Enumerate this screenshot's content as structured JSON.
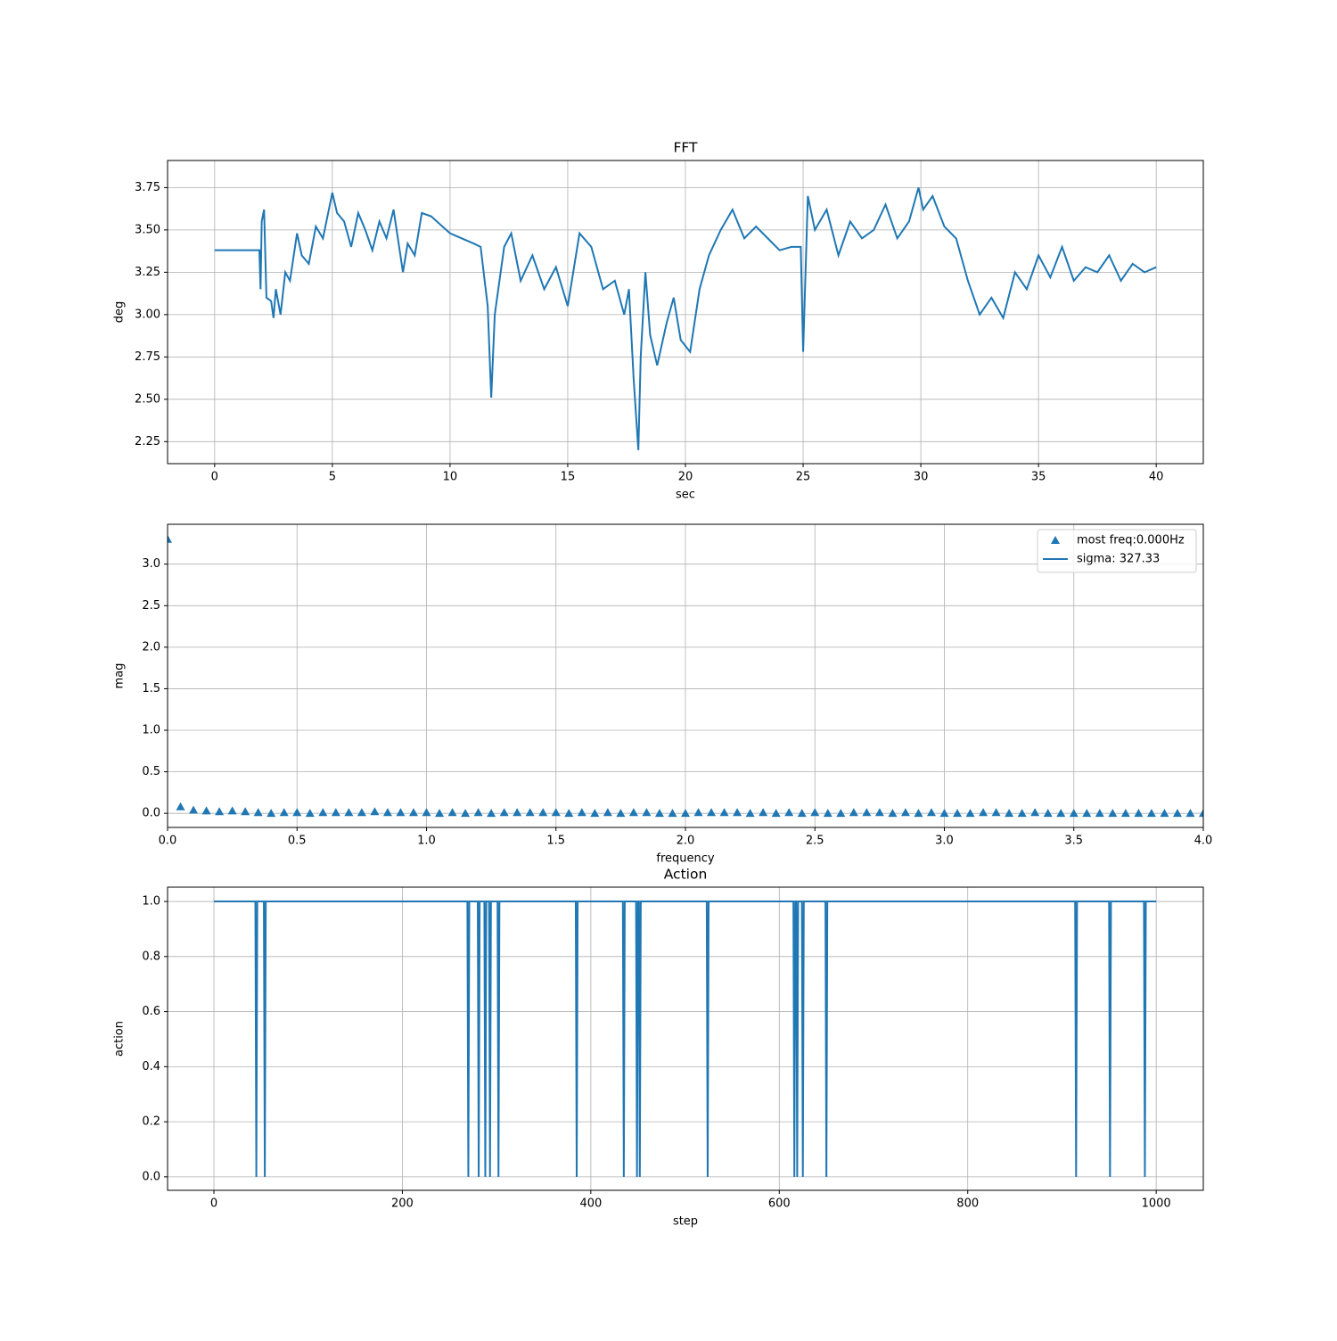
{
  "chart_data": [
    {
      "type": "line",
      "title": "FFT",
      "x_label": "sec",
      "y_label": "deg",
      "grid": true,
      "xlim": [
        -2.0,
        42.0
      ],
      "ylim": [
        2.12,
        3.91
      ],
      "xticks": [
        0,
        5,
        10,
        15,
        20,
        25,
        30,
        35,
        40
      ],
      "yticks": [
        2.25,
        {
          "value": 2.5,
          "label": "2.50"
        },
        2.75,
        {
          "value": 3.0,
          "label": "3.00"
        },
        3.25,
        {
          "value": 3.5,
          "label": "3.50"
        },
        3.75
      ],
      "x": [
        0,
        1.9,
        1.95,
        2.0,
        2.1,
        2.2,
        2.4,
        2.5,
        2.6,
        2.8,
        3.0,
        3.2,
        3.5,
        3.7,
        4.0,
        4.3,
        4.6,
        5.0,
        5.2,
        5.5,
        5.8,
        6.1,
        6.4,
        6.7,
        7.0,
        7.3,
        7.6,
        8.0,
        8.2,
        8.5,
        8.8,
        9.2,
        10,
        11,
        11.3,
        11.6,
        11.75,
        11.9,
        12.3,
        12.6,
        13.0,
        13.5,
        14.0,
        14.5,
        15.0,
        15.5,
        16.0,
        16.5,
        17.0,
        17.4,
        17.6,
        17.8,
        18.0,
        18.1,
        18.3,
        18.5,
        18.8,
        19.2,
        19.5,
        19.8,
        20.2,
        20.6,
        21.0,
        21.5,
        22.0,
        22.5,
        23.0,
        23.5,
        24.0,
        24.5,
        24.9,
        25.0,
        25.2,
        25.5,
        26,
        26.5,
        27,
        27.5,
        28,
        28.5,
        29,
        29.5,
        29.9,
        30.1,
        30.5,
        31,
        31.5,
        32,
        32.5,
        33,
        33.5,
        34,
        34.5,
        35,
        35.5,
        36,
        36.5,
        37,
        37.5,
        38,
        38.5,
        39,
        39.5,
        40
      ],
      "series": [
        {
          "color": "#1f77b4",
          "values": [
            3.38,
            3.38,
            3.15,
            3.55,
            3.62,
            3.1,
            3.08,
            2.98,
            3.15,
            3.0,
            3.25,
            3.2,
            3.48,
            3.35,
            3.3,
            3.52,
            3.45,
            3.72,
            3.6,
            3.55,
            3.4,
            3.6,
            3.5,
            3.38,
            3.55,
            3.45,
            3.62,
            3.25,
            3.42,
            3.35,
            3.6,
            3.58,
            3.48,
            3.42,
            3.4,
            3.05,
            2.51,
            3.0,
            3.4,
            3.48,
            3.2,
            3.35,
            3.15,
            3.28,
            3.05,
            3.48,
            3.4,
            3.15,
            3.2,
            3.0,
            3.15,
            2.62,
            2.2,
            2.75,
            3.25,
            2.88,
            2.7,
            2.95,
            3.1,
            2.85,
            2.78,
            3.15,
            3.35,
            3.5,
            3.62,
            3.45,
            3.52,
            3.45,
            3.38,
            3.4,
            3.4,
            2.78,
            3.7,
            3.5,
            3.62,
            3.35,
            3.55,
            3.45,
            3.5,
            3.65,
            3.45,
            3.55,
            3.75,
            3.62,
            3.7,
            3.52,
            3.45,
            3.2,
            3.0,
            3.1,
            2.98,
            3.25,
            3.15,
            3.35,
            3.22,
            3.4,
            3.2,
            3.28,
            3.25,
            3.35,
            3.2,
            3.3,
            3.25,
            3.28
          ]
        }
      ]
    },
    {
      "type": "scatter",
      "x_label": "frequency",
      "y_label": "mag",
      "grid": true,
      "legend": "upper right",
      "xlim": [
        0.0,
        4.0
      ],
      "ylim": [
        -0.17,
        3.48
      ],
      "xticks": [
        {
          "value": 0,
          "label": "0.0"
        },
        0.5,
        {
          "value": 1,
          "label": "1.0"
        },
        1.5,
        {
          "value": 2,
          "label": "2.0"
        },
        2.5,
        {
          "value": 3,
          "label": "3.0"
        },
        3.5,
        {
          "value": 4,
          "label": "4.0"
        }
      ],
      "yticks": [
        {
          "value": 0,
          "label": "0.0"
        },
        0.5,
        {
          "value": 1,
          "label": "1.0"
        },
        1.5,
        {
          "value": 2,
          "label": "2.0"
        },
        2.5,
        {
          "value": 3,
          "label": "3.0"
        }
      ],
      "x": [
        0,
        0.05,
        0.1,
        0.15,
        0.2,
        0.25,
        0.3,
        0.35,
        0.4,
        0.45,
        0.5,
        0.55,
        0.6,
        0.65,
        0.7,
        0.75,
        0.8,
        0.85,
        0.9,
        0.95,
        1,
        1.05,
        1.1,
        1.15,
        1.2,
        1.25,
        1.3,
        1.35,
        1.4,
        1.45,
        1.5,
        1.55,
        1.6,
        1.65,
        1.7,
        1.75,
        1.8,
        1.85,
        1.9,
        1.95,
        2,
        2.05,
        2.1,
        2.15,
        2.2,
        2.25,
        2.3,
        2.35,
        2.4,
        2.45,
        2.5,
        2.55,
        2.6,
        2.65,
        2.7,
        2.75,
        2.8,
        2.85,
        2.9,
        2.95,
        3,
        3.05,
        3.1,
        3.15,
        3.2,
        3.25,
        3.3,
        3.35,
        3.4,
        3.45,
        3.5,
        3.55,
        3.6,
        3.65,
        3.7,
        3.75,
        3.8,
        3.85,
        3.9,
        3.95,
        4
      ],
      "series": [
        {
          "name": "most freq:0.000Hz",
          "color": "#1f77b4",
          "marker": "triangle",
          "values": [
            3.3,
            0.08,
            0.04,
            0.03,
            0.02,
            0.03,
            0.02,
            0.01,
            0.0,
            0.01,
            0.01,
            0.0,
            0.01,
            0.01,
            0.01,
            0.01,
            0.02,
            0.01,
            0.01,
            0.01,
            0.01,
            0.0,
            0.01,
            0.0,
            0.01,
            0.0,
            0.01,
            0.01,
            0.01,
            0.01,
            0.01,
            0.0,
            0.01,
            0.0,
            0.01,
            0.0,
            0.01,
            0.01,
            0.0,
            0.0,
            0.0,
            0.01,
            0.01,
            0.01,
            0.01,
            0.0,
            0.01,
            0.0,
            0.01,
            0.0,
            0.01,
            0.0,
            0.0,
            0.01,
            0.01,
            0.01,
            0.0,
            0.01,
            0.0,
            0.01,
            0.0,
            0.0,
            0.0,
            0.01,
            0.01,
            0.0,
            0.0,
            0.01,
            0.0,
            0.0,
            0.0,
            0.0,
            0.0,
            0.0,
            0.0,
            0.0,
            0.0,
            0.0,
            0.0,
            0.0,
            0.0
          ]
        },
        {
          "name": "sigma: 327.33",
          "color": "#1f77b4",
          "marker": "line"
        }
      ]
    },
    {
      "type": "line",
      "title": "Action",
      "x_label": "step",
      "y_label": "action",
      "grid": true,
      "xlim": [
        -49.2,
        1050
      ],
      "ylim": [
        -0.049,
        1.052
      ],
      "xticks": [
        0,
        200,
        400,
        600,
        800,
        1000
      ],
      "yticks": [
        {
          "value": 0,
          "label": "0.0"
        },
        0.2,
        0.4,
        0.6,
        0.8,
        {
          "value": 1,
          "label": "1.0"
        }
      ],
      "x": [
        0,
        44,
        45,
        46,
        53,
        54,
        55,
        269,
        270,
        271,
        280,
        281,
        282,
        287,
        288,
        289,
        292,
        293,
        294,
        301,
        302,
        303,
        384,
        385,
        386,
        434,
        435,
        436,
        448,
        449,
        450,
        451,
        452,
        453,
        523,
        524,
        525,
        615,
        616,
        617,
        618,
        619,
        620,
        624,
        625,
        626,
        649,
        650,
        651,
        914,
        915,
        916,
        950,
        951,
        952,
        987,
        988,
        989,
        1000
      ],
      "series": [
        {
          "color": "#1f77b4",
          "values": [
            1,
            1,
            0,
            1,
            1,
            0,
            1,
            1,
            0,
            1,
            1,
            0,
            1,
            1,
            0,
            1,
            1,
            0,
            1,
            1,
            0,
            1,
            1,
            0,
            1,
            1,
            0,
            1,
            1,
            0,
            1,
            1,
            0,
            1,
            1,
            0,
            1,
            1,
            0,
            1,
            1,
            0,
            1,
            1,
            0,
            1,
            1,
            0,
            1,
            1,
            0,
            1,
            1,
            0,
            1,
            1,
            0,
            1,
            1
          ]
        }
      ]
    }
  ]
}
